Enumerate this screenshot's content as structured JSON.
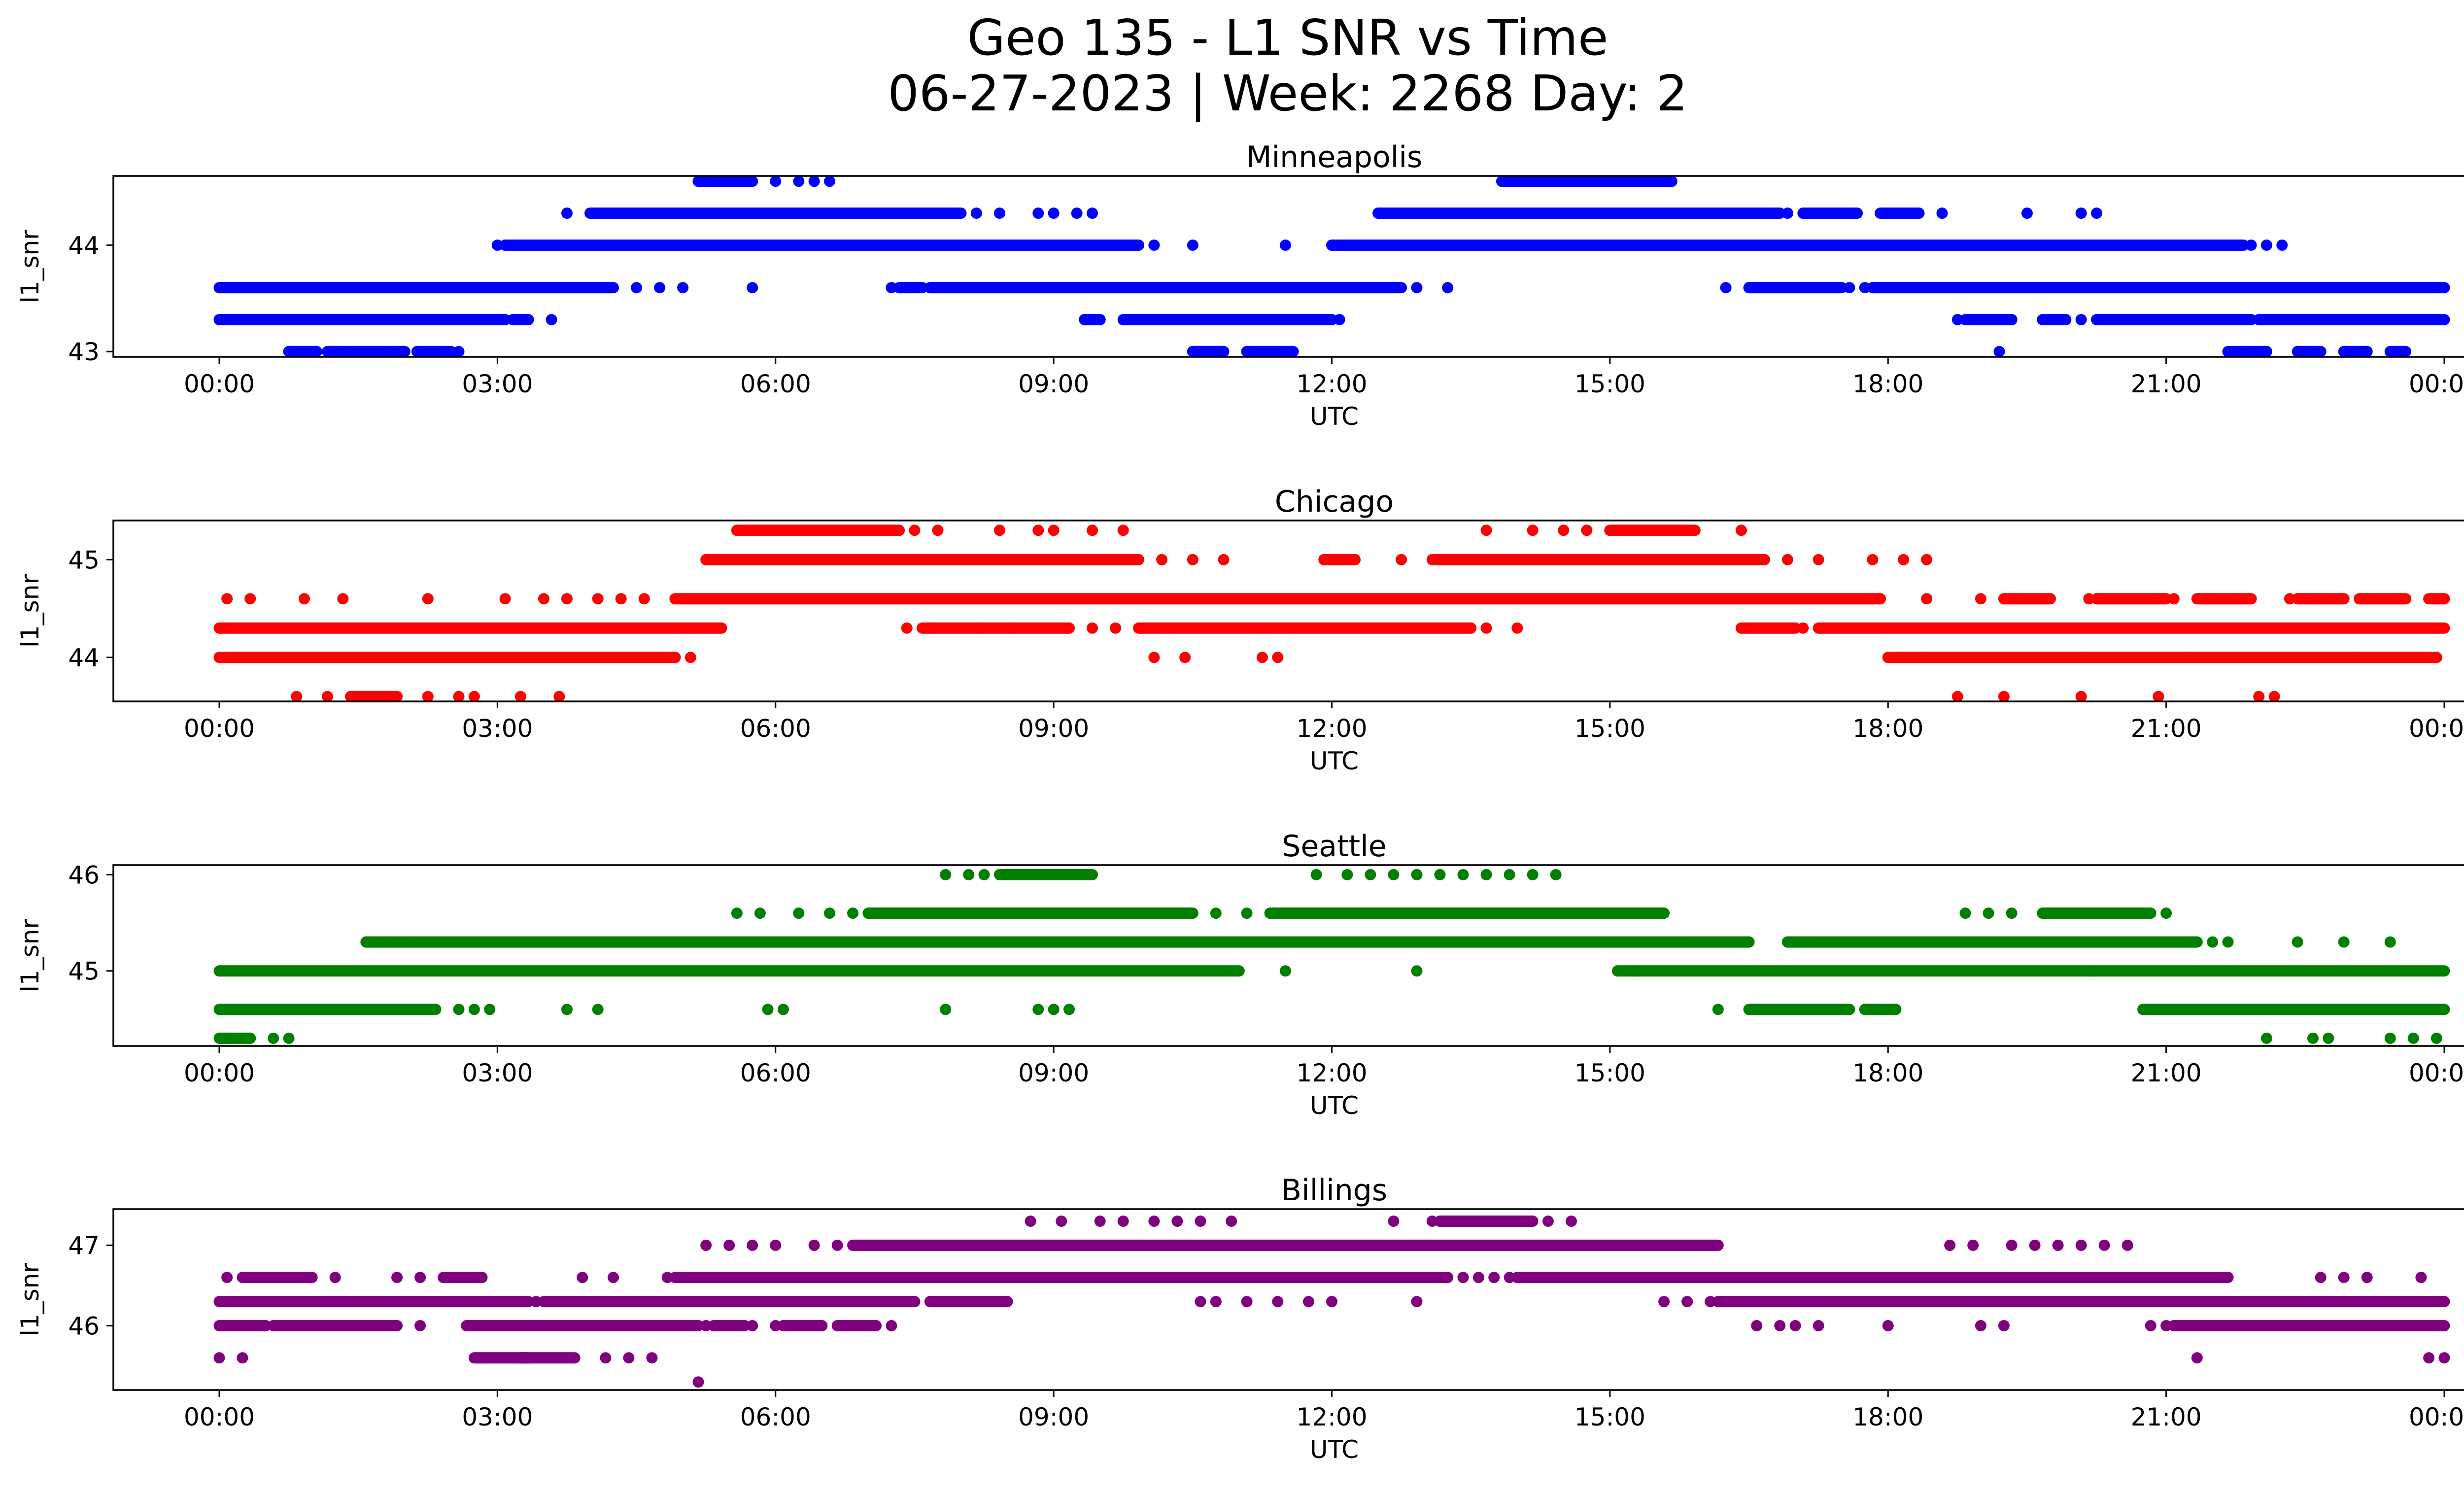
{
  "title_line1": "Geo 135 - L1 SNR vs Time",
  "title_line2": "06-27-2023 | Week: 2268 Day: 2",
  "chart_data": [
    {
      "type": "scatter",
      "title": "Minneapolis",
      "xlabel": "UTC",
      "ylabel": "l1_snr",
      "color": "#0000ff",
      "xlim": [
        "00:00",
        "24:00"
      ],
      "xticks": [
        "00:00",
        "03:00",
        "06:00",
        "09:00",
        "12:00",
        "15:00",
        "18:00",
        "21:00",
        "00:00"
      ],
      "ylim": [
        42.95,
        44.65
      ],
      "yticks": [
        43,
        44
      ],
      "series": [
        {
          "y": 43.0,
          "ranges": [
            [
              "00:45",
              "01:03"
            ],
            [
              "01:10",
              "02:00"
            ],
            [
              "02:08",
              "02:30"
            ],
            [
              "10:30",
              "10:50"
            ],
            [
              "11:05",
              "11:35"
            ],
            [
              "21:40",
              "22:05"
            ],
            [
              "22:25",
              "22:40"
            ],
            [
              "22:55",
              "23:10"
            ],
            [
              "23:25",
              "23:35"
            ]
          ],
          "points": [
            "00:48",
            "01:12",
            "01:25",
            "01:50",
            "02:10",
            "02:25",
            "02:35",
            "10:30",
            "10:45",
            "11:10",
            "11:30",
            "19:12",
            "22:00",
            "22:30",
            "23:05",
            "23:30"
          ]
        },
        {
          "y": 43.3,
          "ranges": [
            [
              "00:00",
              "03:05"
            ],
            [
              "03:10",
              "03:20"
            ],
            [
              "09:20",
              "09:30"
            ],
            [
              "09:45",
              "12:00"
            ],
            [
              "18:50",
              "19:20"
            ],
            [
              "19:40",
              "19:55"
            ],
            [
              "20:15",
              "21:55"
            ],
            [
              "22:00",
              "24:00"
            ]
          ],
          "points": [
            "03:35",
            "09:20",
            "09:30",
            "12:05",
            "18:45",
            "19:00",
            "19:20",
            "19:45",
            "20:05",
            "20:25"
          ]
        },
        {
          "y": 43.6,
          "ranges": [
            [
              "00:00",
              "04:15"
            ],
            [
              "07:20",
              "07:35"
            ],
            [
              "07:40",
              "12:45"
            ],
            [
              "16:30",
              "17:30"
            ],
            [
              "17:50",
              "24:00"
            ]
          ],
          "points": [
            "04:30",
            "04:45",
            "05:00",
            "05:45",
            "07:15",
            "12:55",
            "13:15",
            "16:15",
            "17:35",
            "17:45"
          ]
        },
        {
          "y": 44.0,
          "ranges": [
            [
              "03:05",
              "09:55"
            ],
            [
              "12:00",
              "21:50"
            ]
          ],
          "points": [
            "10:05",
            "10:30",
            "11:30",
            "12:00",
            "21:55",
            "22:05",
            "22:15",
            "03:00"
          ]
        },
        {
          "y": 44.3,
          "ranges": [
            [
              "04:00",
              "08:00"
            ],
            [
              "12:30",
              "16:50"
            ],
            [
              "17:05",
              "17:40"
            ],
            [
              "17:55",
              "18:20"
            ]
          ],
          "points": [
            "03:45",
            "04:05",
            "08:10",
            "08:25",
            "08:50",
            "09:00",
            "09:15",
            "09:25",
            "16:55",
            "18:35",
            "19:30",
            "20:05",
            "20:15"
          ]
        },
        {
          "y": 44.6,
          "ranges": [
            [
              "05:10",
              "05:45"
            ],
            [
              "13:50",
              "15:40"
            ]
          ],
          "points": [
            "05:15",
            "05:45",
            "06:00",
            "06:15",
            "06:25",
            "06:35",
            "14:10",
            "15:15",
            "15:40"
          ]
        }
      ]
    },
    {
      "type": "scatter",
      "title": "Chicago",
      "xlabel": "UTC",
      "ylabel": "l1_snr",
      "color": "#ff0000",
      "xlim": [
        "00:00",
        "24:00"
      ],
      "xticks": [
        "00:00",
        "03:00",
        "06:00",
        "09:00",
        "12:00",
        "15:00",
        "18:00",
        "21:00",
        "00:00"
      ],
      "ylim": [
        43.55,
        45.4
      ],
      "yticks": [
        44,
        45
      ],
      "series": [
        {
          "y": 43.6,
          "ranges": [
            [
              "01:25",
              "01:55"
            ]
          ],
          "points": [
            "00:50",
            "01:10",
            "01:30",
            "01:45",
            "02:15",
            "02:35",
            "02:45",
            "03:15",
            "03:40",
            "18:45",
            "19:15",
            "20:05",
            "20:55",
            "22:00",
            "22:10"
          ]
        },
        {
          "y": 44.0,
          "ranges": [
            [
              "00:00",
              "04:55"
            ],
            [
              "18:00",
              "23:55"
            ]
          ],
          "points": [
            "04:55",
            "05:05",
            "10:05",
            "10:25",
            "11:15",
            "11:25",
            "18:10",
            "18:25",
            "20:05",
            "21:15",
            "23:05"
          ]
        },
        {
          "y": 44.3,
          "ranges": [
            [
              "00:00",
              "05:25"
            ],
            [
              "07:35",
              "09:10"
            ],
            [
              "09:55",
              "13:30"
            ],
            [
              "16:25",
              "17:00"
            ],
            [
              "17:15",
              "24:00"
            ]
          ],
          "points": [
            "07:25",
            "07:40",
            "08:10",
            "08:35",
            "09:10",
            "09:25",
            "09:40",
            "13:40",
            "14:00",
            "17:05"
          ]
        },
        {
          "y": 44.6,
          "ranges": [
            [
              "04:55",
              "17:55"
            ],
            [
              "19:15",
              "19:45"
            ],
            [
              "20:15",
              "21:00"
            ],
            [
              "21:20",
              "21:55"
            ],
            [
              "22:25",
              "22:55"
            ],
            [
              "23:05",
              "23:35"
            ],
            [
              "23:50",
              "24:00"
            ]
          ],
          "points": [
            "00:05",
            "00:20",
            "00:55",
            "01:20",
            "02:15",
            "03:05",
            "03:30",
            "03:45",
            "04:05",
            "04:20",
            "04:35",
            "18:25",
            "19:00",
            "20:10",
            "21:05",
            "22:20",
            "22:35",
            "23:10"
          ]
        },
        {
          "y": 45.0,
          "ranges": [
            [
              "05:15",
              "09:55"
            ],
            [
              "11:55",
              "12:15"
            ],
            [
              "13:05",
              "16:40"
            ]
          ],
          "points": [
            "10:10",
            "10:30",
            "10:50",
            "11:55",
            "12:10",
            "12:45",
            "16:55",
            "17:15",
            "17:50",
            "18:10",
            "18:25"
          ]
        },
        {
          "y": 45.3,
          "ranges": [
            [
              "05:35",
              "07:20"
            ],
            [
              "15:00",
              "15:55"
            ]
          ],
          "points": [
            "07:30",
            "07:45",
            "08:25",
            "08:50",
            "09:00",
            "09:25",
            "09:45",
            "13:40",
            "14:10",
            "14:30",
            "14:45",
            "16:25"
          ]
        }
      ]
    },
    {
      "type": "scatter",
      "title": "Seattle",
      "xlabel": "UTC",
      "ylabel": "l1_snr",
      "color": "#008000",
      "xlim": [
        "00:00",
        "24:00"
      ],
      "xticks": [
        "00:00",
        "03:00",
        "06:00",
        "09:00",
        "12:00",
        "15:00",
        "18:00",
        "21:00",
        "00:00"
      ],
      "ylim": [
        44.22,
        46.1
      ],
      "yticks": [
        45,
        46
      ],
      "series": [
        {
          "y": 44.3,
          "ranges": [
            [
              "00:00",
              "00:20"
            ]
          ],
          "points": [
            "00:05",
            "00:20",
            "00:35",
            "00:45",
            "22:05",
            "22:35",
            "22:45",
            "23:25",
            "23:40",
            "23:55"
          ]
        },
        {
          "y": 44.6,
          "ranges": [
            [
              "00:00",
              "02:20"
            ],
            [
              "16:30",
              "17:35"
            ],
            [
              "17:45",
              "18:05"
            ],
            [
              "20:45",
              "24:00"
            ]
          ],
          "points": [
            "02:35",
            "02:45",
            "02:55",
            "03:45",
            "04:05",
            "05:55",
            "06:05",
            "07:50",
            "08:50",
            "09:00",
            "09:10",
            "16:10"
          ]
        },
        {
          "y": 45.0,
          "ranges": [
            [
              "00:00",
              "11:00"
            ],
            [
              "15:05",
              "24:00"
            ]
          ],
          "points": [
            "11:30",
            "12:55",
            "15:05",
            "15:15",
            "20:10"
          ]
        },
        {
          "y": 45.3,
          "ranges": [
            [
              "01:35",
              "16:30"
            ],
            [
              "16:55",
              "21:20"
            ]
          ],
          "points": [
            "01:35",
            "01:50",
            "02:05",
            "16:30",
            "16:55",
            "21:30",
            "21:40",
            "22:25",
            "22:55",
            "23:25"
          ]
        },
        {
          "y": 45.6,
          "ranges": [
            [
              "07:00",
              "10:30"
            ],
            [
              "11:20",
              "15:35"
            ],
            [
              "19:40",
              "20:50"
            ]
          ],
          "points": [
            "05:35",
            "05:50",
            "06:15",
            "06:35",
            "06:50",
            "10:45",
            "11:05",
            "18:50",
            "19:05",
            "19:20",
            "21:00"
          ]
        },
        {
          "y": 46.0,
          "ranges": [
            [
              "08:25",
              "09:25"
            ]
          ],
          "points": [
            "07:50",
            "08:05",
            "08:15",
            "08:40",
            "11:50",
            "12:10",
            "12:25",
            "12:40",
            "12:55",
            "13:10",
            "13:25",
            "13:40",
            "13:55",
            "14:10",
            "14:25"
          ]
        }
      ]
    },
    {
      "type": "scatter",
      "title": "Billings",
      "xlabel": "UTC",
      "ylabel": "l1_snr",
      "color": "#800080",
      "xlim": [
        "00:00",
        "24:00"
      ],
      "xticks": [
        "00:00",
        "03:00",
        "06:00",
        "09:00",
        "12:00",
        "15:00",
        "18:00",
        "21:00",
        "00:00"
      ],
      "ylim": [
        45.2,
        47.45
      ],
      "yticks": [
        46,
        47
      ],
      "series": [
        {
          "y": 45.3,
          "ranges": [],
          "points": [
            "05:10"
          ]
        },
        {
          "y": 45.6,
          "ranges": [
            [
              "02:45",
              "03:20"
            ],
            [
              "03:15",
              "03:50"
            ]
          ],
          "points": [
            "00:00",
            "00:15",
            "02:50",
            "03:10",
            "03:20",
            "04:10",
            "04:25",
            "04:40",
            "23:50",
            "24:00",
            "21:20"
          ]
        },
        {
          "y": 46.0,
          "ranges": [
            [
              "00:00",
              "00:30"
            ],
            [
              "00:35",
              "01:55"
            ],
            [
              "02:40",
              "05:10"
            ],
            [
              "05:20",
              "05:40"
            ],
            [
              "06:05",
              "06:30"
            ],
            [
              "06:40",
              "07:05"
            ],
            [
              "21:05",
              "24:00"
            ]
          ],
          "points": [
            "02:10",
            "05:15",
            "05:25",
            "05:45",
            "06:00",
            "06:20",
            "06:50",
            "07:15",
            "16:35",
            "16:50",
            "17:00",
            "17:15",
            "18:00",
            "19:00",
            "19:15",
            "20:50",
            "21:00"
          ]
        },
        {
          "y": 46.3,
          "ranges": [
            [
              "00:00",
              "03:20"
            ],
            [
              "03:30",
              "07:30"
            ],
            [
              "07:40",
              "08:30"
            ],
            [
              "16:10",
              "24:00"
            ]
          ],
          "points": [
            "03:25",
            "10:35",
            "10:45",
            "11:05",
            "11:25",
            "11:45",
            "12:00",
            "12:55",
            "15:35",
            "15:50",
            "16:05"
          ]
        },
        {
          "y": 46.6,
          "ranges": [
            [
              "00:15",
              "01:00"
            ],
            [
              "02:25",
              "02:50"
            ],
            [
              "04:55",
              "13:15"
            ],
            [
              "14:00",
              "21:40"
            ]
          ],
          "points": [
            "00:05",
            "01:15",
            "01:55",
            "02:10",
            "02:40",
            "03:55",
            "04:15",
            "04:50",
            "13:25",
            "13:35",
            "13:45",
            "13:55",
            "21:35",
            "22:40",
            "22:55",
            "23:10",
            "23:45"
          ]
        },
        {
          "y": 47.0,
          "ranges": [
            [
              "06:50",
              "16:10"
            ]
          ],
          "points": [
            "05:15",
            "05:30",
            "05:45",
            "06:00",
            "06:25",
            "06:40",
            "18:40",
            "18:55",
            "19:20",
            "19:35",
            "19:50",
            "20:05",
            "20:20",
            "20:35"
          ]
        },
        {
          "y": 47.3,
          "ranges": [
            [
              "13:10",
              "14:10"
            ]
          ],
          "points": [
            "08:45",
            "09:05",
            "09:30",
            "09:45",
            "10:05",
            "10:20",
            "10:35",
            "10:55",
            "12:40",
            "13:05",
            "13:20",
            "13:35",
            "13:50",
            "14:05",
            "14:20",
            "14:35"
          ]
        }
      ]
    }
  ]
}
